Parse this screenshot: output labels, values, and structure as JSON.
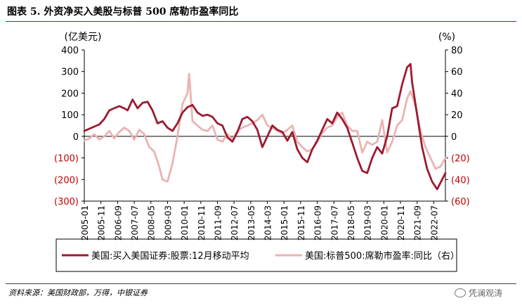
{
  "figure_title": "图表 5. 外资净买入美股与标普 500 席勒市盈率同比",
  "source_note": "资料来源：美国财政部，万得，中银证券",
  "watermark_text": "凭澜观涛",
  "colors": {
    "series_primary": "#9b1b30",
    "series_secondary": "#eab3b3",
    "negative_tick": "#c00000",
    "title_rule": "#9b1b30"
  },
  "chart_data": {
    "type": "line",
    "left_unit": "(亿美元)",
    "right_unit": "(%)",
    "y_left": {
      "min": -300,
      "max": 400,
      "step": 100,
      "tick_labels": [
        "(300)",
        "(200)",
        "(100)",
        "0",
        "100",
        "200",
        "300",
        "400"
      ]
    },
    "y_right": {
      "min": -60,
      "max": 80,
      "step": 20,
      "tick_labels": [
        "(60)",
        "(40)",
        "(20)",
        "0",
        "20",
        "40",
        "60",
        "80"
      ]
    },
    "x_tick_labels": [
      "2005-01",
      "2005-11",
      "2006-09",
      "2007-07",
      "2008-05",
      "2009-03",
      "2010-01",
      "2010-11",
      "2011-09",
      "2012-07",
      "2013-05",
      "2014-03",
      "2015-01",
      "2015-11",
      "2016-09",
      "2017-07",
      "2018-05",
      "2019-03",
      "2020-01",
      "2020-11",
      "2021-09",
      "2022-07"
    ],
    "x_start": "2005-01",
    "x_end": "2023-02",
    "legend": [
      "美国:买入美国证券:股票:12月移动平均",
      "美国:标普500:席勒市盈率:同比（右）"
    ],
    "series": [
      {
        "name": "美国:买入美国证券:股票:12月移动平均",
        "axis": "left",
        "points": [
          [
            "2005-01",
            25
          ],
          [
            "2005-04",
            35
          ],
          [
            "2005-07",
            45
          ],
          [
            "2005-10",
            55
          ],
          [
            "2006-01",
            80
          ],
          [
            "2006-04",
            120
          ],
          [
            "2006-07",
            130
          ],
          [
            "2006-10",
            140
          ],
          [
            "2007-01",
            130
          ],
          [
            "2007-03",
            120
          ],
          [
            "2007-06",
            170
          ],
          [
            "2007-09",
            130
          ],
          [
            "2007-12",
            155
          ],
          [
            "2008-03",
            160
          ],
          [
            "2008-06",
            120
          ],
          [
            "2008-09",
            60
          ],
          [
            "2008-12",
            70
          ],
          [
            "2009-03",
            40
          ],
          [
            "2009-06",
            25
          ],
          [
            "2009-09",
            60
          ],
          [
            "2009-12",
            110
          ],
          [
            "2010-03",
            135
          ],
          [
            "2010-06",
            145
          ],
          [
            "2010-09",
            110
          ],
          [
            "2010-12",
            95
          ],
          [
            "2011-03",
            100
          ],
          [
            "2011-06",
            90
          ],
          [
            "2011-09",
            60
          ],
          [
            "2011-12",
            50
          ],
          [
            "2012-03",
            -5
          ],
          [
            "2012-06",
            -25
          ],
          [
            "2012-09",
            20
          ],
          [
            "2012-12",
            80
          ],
          [
            "2013-03",
            90
          ],
          [
            "2013-06",
            70
          ],
          [
            "2013-09",
            30
          ],
          [
            "2013-12",
            -50
          ],
          [
            "2014-03",
            0
          ],
          [
            "2014-06",
            50
          ],
          [
            "2014-09",
            30
          ],
          [
            "2014-12",
            20
          ],
          [
            "2015-03",
            -20
          ],
          [
            "2015-06",
            20
          ],
          [
            "2015-09",
            -60
          ],
          [
            "2015-12",
            -100
          ],
          [
            "2016-03",
            -120
          ],
          [
            "2016-06",
            -60
          ],
          [
            "2016-09",
            -20
          ],
          [
            "2016-12",
            30
          ],
          [
            "2017-03",
            80
          ],
          [
            "2017-06",
            60
          ],
          [
            "2017-09",
            110
          ],
          [
            "2017-12",
            80
          ],
          [
            "2018-03",
            40
          ],
          [
            "2018-06",
            -30
          ],
          [
            "2018-09",
            -100
          ],
          [
            "2018-12",
            -160
          ],
          [
            "2019-03",
            -170
          ],
          [
            "2019-06",
            -100
          ],
          [
            "2019-09",
            -50
          ],
          [
            "2019-12",
            -80
          ],
          [
            "2020-03",
            0
          ],
          [
            "2020-06",
            130
          ],
          [
            "2020-09",
            140
          ],
          [
            "2020-12",
            240
          ],
          [
            "2021-03",
            320
          ],
          [
            "2021-05",
            335
          ],
          [
            "2021-06",
            250
          ],
          [
            "2021-09",
            100
          ],
          [
            "2021-12",
            -50
          ],
          [
            "2022-03",
            -150
          ],
          [
            "2022-06",
            -210
          ],
          [
            "2022-09",
            -245
          ],
          [
            "2022-12",
            -200
          ],
          [
            "2023-02",
            -170
          ]
        ]
      },
      {
        "name": "美国:标普500:席勒市盈率:同比（右）",
        "axis": "right",
        "points": [
          [
            "2005-01",
            -4
          ],
          [
            "2005-04",
            -2
          ],
          [
            "2005-07",
            2
          ],
          [
            "2005-10",
            -3
          ],
          [
            "2006-01",
            0
          ],
          [
            "2006-04",
            5
          ],
          [
            "2006-07",
            -2
          ],
          [
            "2006-10",
            4
          ],
          [
            "2007-01",
            8
          ],
          [
            "2007-04",
            5
          ],
          [
            "2007-07",
            -3
          ],
          [
            "2007-10",
            6
          ],
          [
            "2008-01",
            2
          ],
          [
            "2008-04",
            -10
          ],
          [
            "2008-07",
            -14
          ],
          [
            "2008-10",
            -28
          ],
          [
            "2008-12",
            -40
          ],
          [
            "2009-03",
            -42
          ],
          [
            "2009-06",
            -25
          ],
          [
            "2009-09",
            0
          ],
          [
            "2009-12",
            30
          ],
          [
            "2010-03",
            40
          ],
          [
            "2010-04",
            58
          ],
          [
            "2010-06",
            14
          ],
          [
            "2010-09",
            10
          ],
          [
            "2010-12",
            6
          ],
          [
            "2011-03",
            5
          ],
          [
            "2011-06",
            10
          ],
          [
            "2011-09",
            -3
          ],
          [
            "2011-12",
            -5
          ],
          [
            "2012-03",
            2
          ],
          [
            "2012-06",
            -3
          ],
          [
            "2012-09",
            5
          ],
          [
            "2012-12",
            8
          ],
          [
            "2013-03",
            10
          ],
          [
            "2013-06",
            12
          ],
          [
            "2013-09",
            15
          ],
          [
            "2013-12",
            20
          ],
          [
            "2014-03",
            10
          ],
          [
            "2014-06",
            8
          ],
          [
            "2014-09",
            5
          ],
          [
            "2014-12",
            3
          ],
          [
            "2015-03",
            6
          ],
          [
            "2015-06",
            10
          ],
          [
            "2015-09",
            -5
          ],
          [
            "2015-12",
            -10
          ],
          [
            "2016-03",
            -14
          ],
          [
            "2016-06",
            -12
          ],
          [
            "2016-09",
            -5
          ],
          [
            "2016-12",
            3
          ],
          [
            "2017-03",
            8
          ],
          [
            "2017-06",
            10
          ],
          [
            "2017-09",
            18
          ],
          [
            "2017-12",
            22
          ],
          [
            "2018-03",
            10
          ],
          [
            "2018-06",
            5
          ],
          [
            "2018-09",
            5
          ],
          [
            "2018-12",
            -15
          ],
          [
            "2019-03",
            -5
          ],
          [
            "2019-06",
            -8
          ],
          [
            "2019-09",
            -5
          ],
          [
            "2019-12",
            15
          ],
          [
            "2020-03",
            -15
          ],
          [
            "2020-06",
            -5
          ],
          [
            "2020-09",
            10
          ],
          [
            "2020-12",
            15
          ],
          [
            "2021-03",
            35
          ],
          [
            "2021-05",
            42
          ],
          [
            "2021-08",
            28
          ],
          [
            "2021-11",
            5
          ],
          [
            "2022-02",
            -10
          ],
          [
            "2022-05",
            -20
          ],
          [
            "2022-08",
            -30
          ],
          [
            "2022-11",
            -28
          ],
          [
            "2023-02",
            -20
          ]
        ]
      }
    ]
  }
}
